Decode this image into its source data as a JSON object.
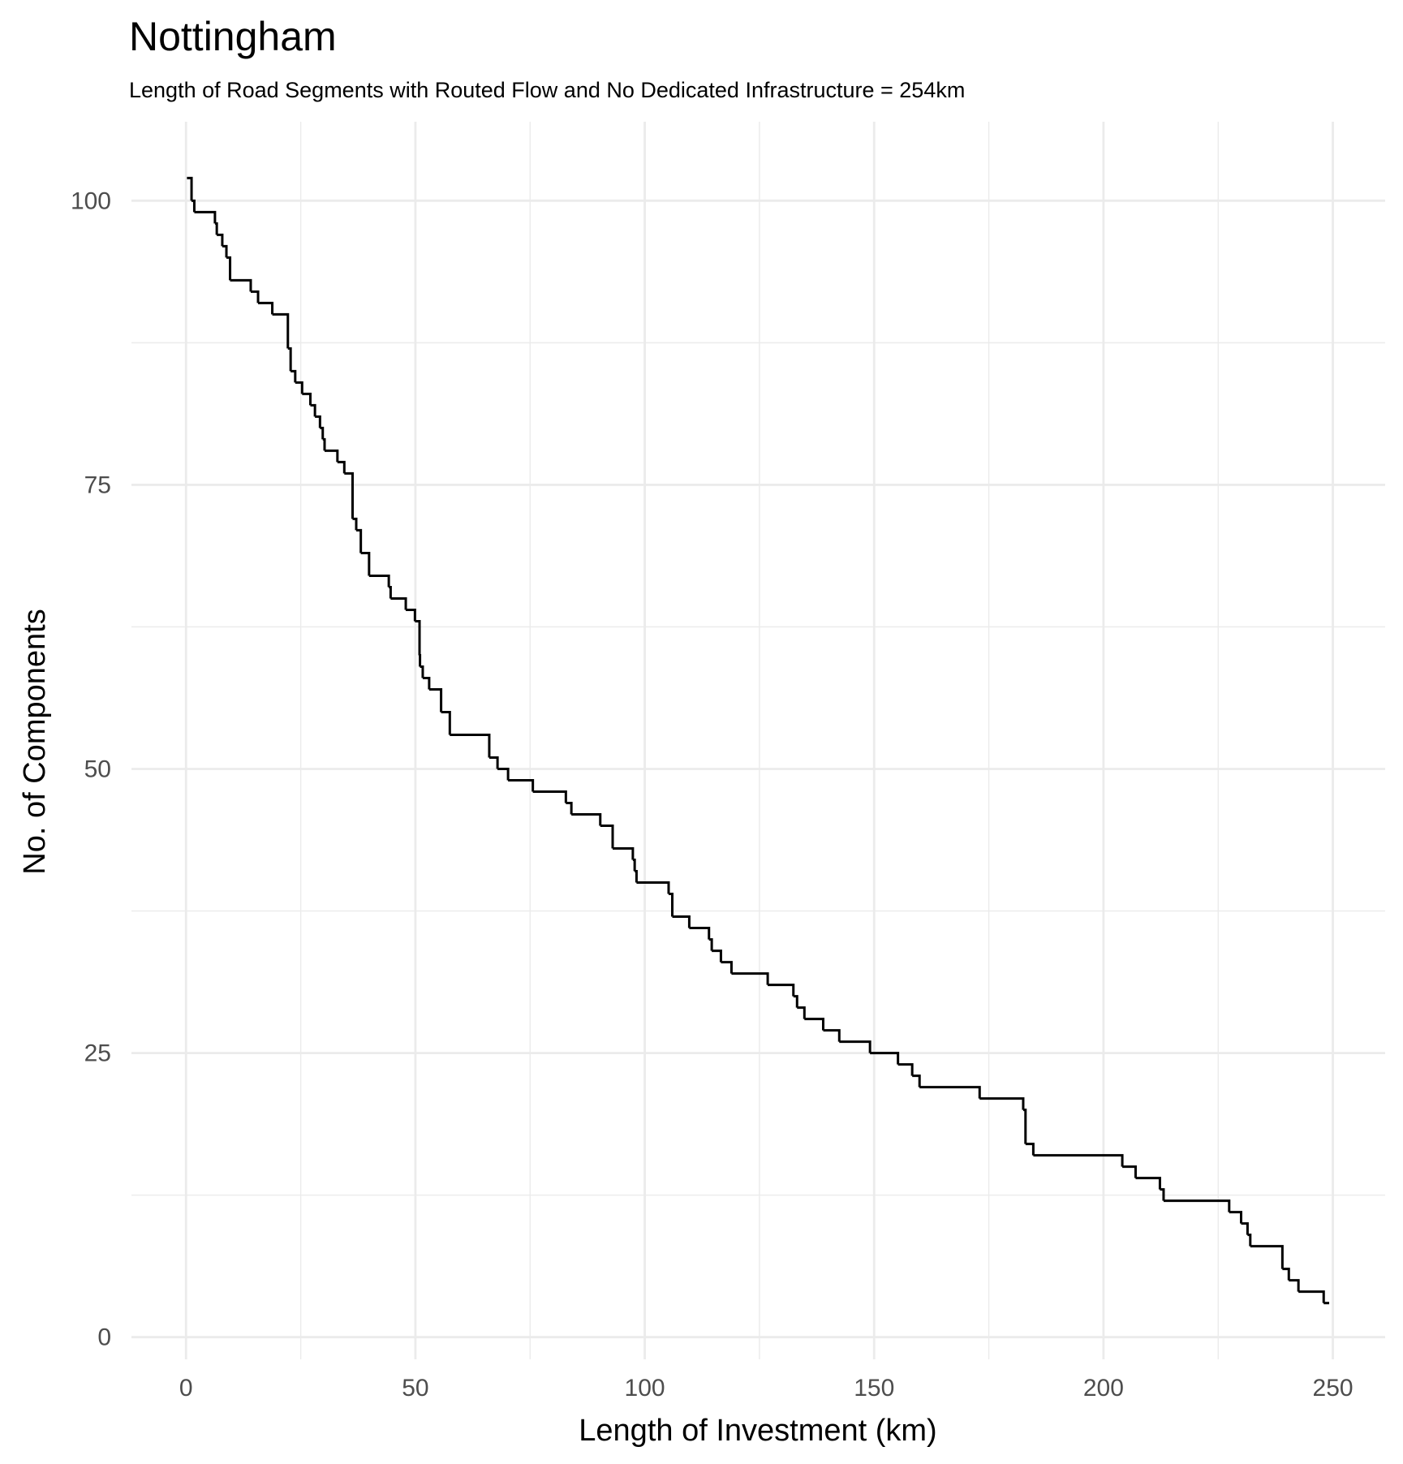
{
  "chart_data": {
    "type": "step",
    "title": "Nottingham",
    "subtitle": "Length of Road Segments with Routed Flow and No Dedicated Infrastructure = 254km",
    "x_label": "Length of Investment (km)",
    "y_label": "No. of Components",
    "xlim": [
      -11.9,
      261.4
    ],
    "ylim": [
      -1.95,
      106.95
    ],
    "xticks": [
      0,
      50,
      100,
      150,
      200,
      250
    ],
    "yticks": [
      0,
      25,
      50,
      75,
      100
    ],
    "x_minor_ticks": [
      25,
      75,
      125,
      175,
      225
    ],
    "y_minor_ticks": [
      12.5,
      37.5,
      62.5,
      87.5
    ],
    "grid": true,
    "series": [
      {
        "name": "Nottingham",
        "color": "#000000",
        "x": [
          0.2,
          1.2,
          1.8,
          6.3,
          6.7,
          7.9,
          8.8,
          9.6,
          14.1,
          15.7,
          18.8,
          22.2,
          22.8,
          23.8,
          25.3,
          27.1,
          28.1,
          29.2,
          29.8,
          30.2,
          33.0,
          34.5,
          36.3,
          37.1,
          38.1,
          39.9,
          44.2,
          44.6,
          47.9,
          49.9,
          50.9,
          51.0,
          51.6,
          53.0,
          55.6,
          57.5,
          66.1,
          67.9,
          70.2,
          75.6,
          82.8,
          84.0,
          90.3,
          93.0,
          97.4,
          97.8,
          98.2,
          105.2,
          106.0,
          109.7,
          114.0,
          114.6,
          116.6,
          118.9,
          126.8,
          132.4,
          133.2,
          134.8,
          138.9,
          142.4,
          149.1,
          155.2,
          158.3,
          159.9,
          173.0,
          182.5,
          183.0,
          184.7,
          204.1,
          207.0,
          212.3,
          213.1,
          227.4,
          230.0,
          231.4,
          232.0,
          239.0,
          240.4,
          242.5,
          248.0,
          249.2
        ],
        "values": [
          102,
          100,
          99,
          98,
          97,
          96,
          95,
          93,
          92,
          91,
          90,
          87,
          85,
          84,
          83,
          82,
          81,
          80,
          79,
          78,
          77,
          76,
          72,
          71,
          69,
          67,
          66,
          65,
          64,
          63,
          60,
          59,
          58,
          57,
          55,
          53,
          51,
          50,
          49,
          48,
          47,
          46,
          45,
          43,
          42,
          41,
          40,
          39,
          37,
          36,
          35,
          34,
          33,
          32,
          31,
          30,
          29,
          28,
          27,
          26,
          25,
          24,
          23,
          22,
          21,
          20,
          17,
          16,
          15,
          14,
          13,
          12,
          11,
          10,
          9,
          8,
          6,
          5,
          4,
          3,
          3
        ]
      }
    ]
  }
}
